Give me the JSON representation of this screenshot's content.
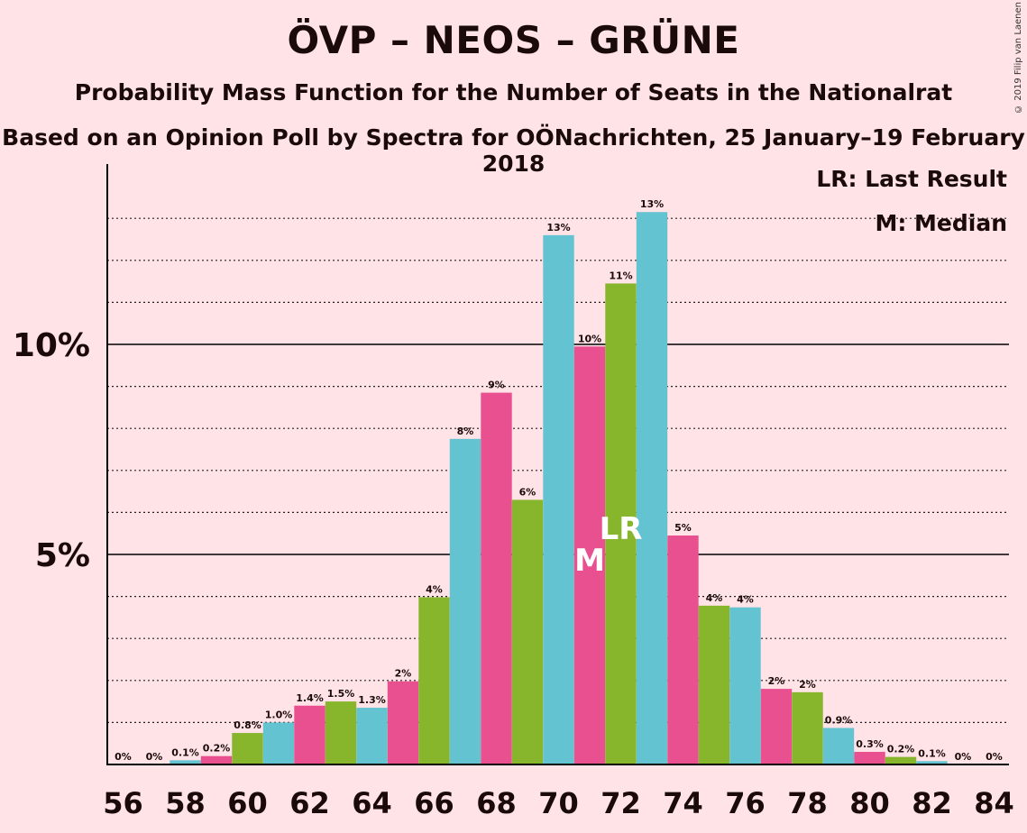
{
  "header": {
    "title": "ÖVP – NEOS – GRÜNE",
    "subtitle": "Probability Mass Function for the Number of Seats in the Nationalrat",
    "source": "Based on an Opinion Poll by Spectra for OÖNachrichten, 25 January–19 February 2018",
    "copyright": "© 2019 Filip van Laenen"
  },
  "legend": {
    "last_result": "LR: Last Result",
    "median": "M: Median"
  },
  "colors": {
    "background": "#ffe3e6",
    "pink": "#e8508f",
    "green": "#87b52c",
    "cyan": "#63c3d1",
    "axis": "#000000"
  },
  "chart_data": {
    "type": "bar",
    "title": "ÖVP – NEOS – GRÜNE",
    "x": [
      56,
      57,
      58,
      59,
      60,
      61,
      62,
      63,
      64,
      65,
      66,
      67,
      68,
      69,
      70,
      71,
      72,
      73,
      74,
      75,
      76,
      77,
      78,
      79,
      80,
      81,
      82,
      83,
      84
    ],
    "values": [
      0,
      0,
      0.1,
      0.2,
      0.75,
      1.0,
      1.4,
      1.5,
      1.35,
      1.98,
      3.98,
      7.75,
      8.85,
      6.3,
      12.6,
      9.95,
      11.45,
      13.15,
      5.45,
      3.78,
      3.74,
      1.8,
      1.72,
      0.87,
      0.3,
      0.18,
      0.08,
      0,
      0
    ],
    "labels": [
      "0%",
      "0%",
      "0.1%",
      "0.2%",
      "0.8%",
      "1.0%",
      "1.4%",
      "1.5%",
      "1.3%",
      "2%",
      "4%",
      "8%",
      "9%",
      "6%",
      "13%",
      "10%",
      "11%",
      "13%",
      "5%",
      "4%",
      "4%",
      "2%",
      "2%",
      "0.9%",
      "0.3%",
      "0.2%",
      "0.1%",
      "0%",
      "0%"
    ],
    "x_ticks": [
      "56",
      "58",
      "60",
      "62",
      "64",
      "66",
      "68",
      "70",
      "72",
      "74",
      "76",
      "78",
      "80",
      "82",
      "84"
    ],
    "y_ticks": [
      "5%",
      "10%"
    ],
    "ylim": [
      0,
      14.3
    ],
    "median_seat": 71,
    "median_label": "M",
    "last_result_seat": 72,
    "last_result_label": "LR",
    "grid": "dotted every 1%, solid at 5% and 10%",
    "legend_position": "top-right"
  }
}
